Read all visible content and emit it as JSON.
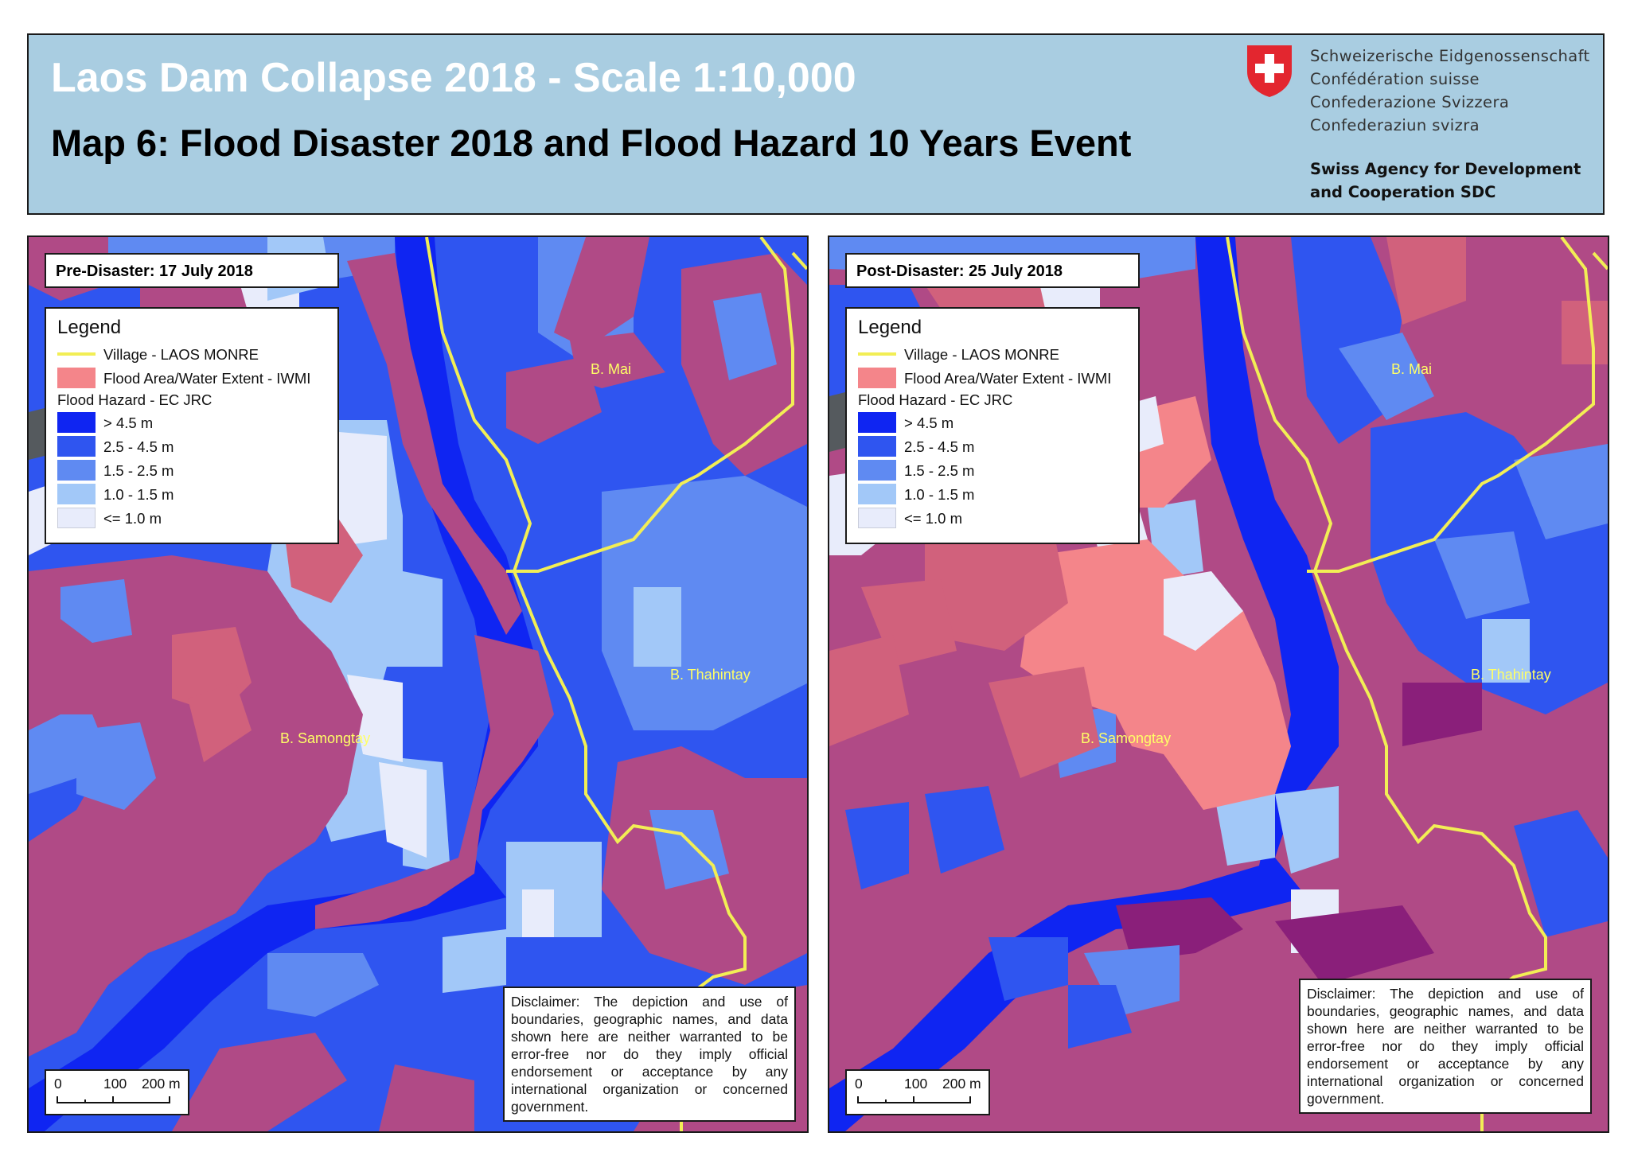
{
  "header": {
    "title": "Laos Dam Collapse 2018 - Scale 1:10,000",
    "subtitle": "Map 6: Flood Disaster 2018 and Flood Hazard 10 Years Event",
    "confederation": [
      "Schweizerische Eidgenossenschaft",
      "Confédération suisse",
      "Confederazione Svizzera",
      "Confederaziun svizra"
    ],
    "agency": [
      "Swiss Agency for Development",
      "and Cooperation SDC"
    ]
  },
  "colors": {
    "village_line": "#f2ee55",
    "flood_area": "#f4858a",
    "hazard_gt_4_5": "#0f25f2",
    "hazard_2_5_4_5": "#2f55f0",
    "hazard_1_5_2_5": "#5f8af2",
    "hazard_1_0_1_5": "#a2c8f8",
    "hazard_le_1_0": "#e8ecfb",
    "flood_over_hazard": "#b04a86"
  },
  "legend": {
    "title": "Legend",
    "village": "Village - LAOS MONRE",
    "flood_area": "Flood Area/Water Extent - IWMI",
    "hazard_heading": "Flood Hazard - EC JRC",
    "hazard_classes": [
      "> 4.5 m",
      "2.5 - 4.5 m",
      "1.5 - 2.5 m",
      "1.0 - 1.5 m",
      "<= 1.0 m"
    ]
  },
  "panels": [
    {
      "date_label": "Pre-Disaster: 17 July 2018",
      "villages": [
        "B. Mai",
        "B. Thahintay",
        "B. Samongtay"
      ]
    },
    {
      "date_label": "Post-Disaster: 25 July 2018",
      "villages": [
        "B. Mai",
        "B. Thahintay",
        "B. Samongtay"
      ]
    }
  ],
  "disclaimer": "Disclaimer: The depiction and use of boundaries, geographic names, and data shown here are neither warranted to be error-free nor do they imply official endorsement or acceptance by any international organization or concerned government.",
  "scale_bar": {
    "labels": [
      "0",
      "100",
      "200 m"
    ]
  }
}
